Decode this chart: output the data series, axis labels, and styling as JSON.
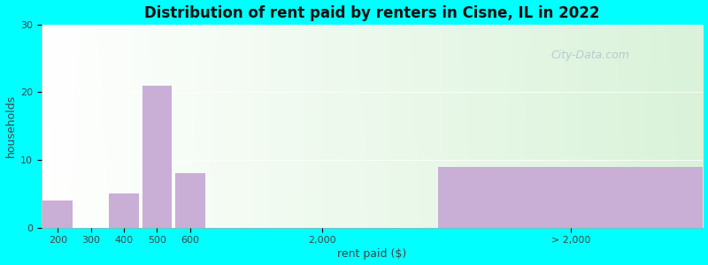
{
  "title": "Distribution of rent paid by renters in Cisne, IL in 2022",
  "xlabel": "rent paid ($)",
  "ylabel": "households",
  "bar_color": "#c9aed6",
  "background_color": "#00ffff",
  "ylim": [
    0,
    30
  ],
  "yticks": [
    0,
    10,
    20,
    30
  ],
  "bar_values": [
    4,
    0,
    5,
    21,
    8,
    0,
    9
  ],
  "xtick_labels": [
    "200",
    "300",
    "400",
    "500",
    "600",
    "2,000",
    "> 2,000"
  ],
  "watermark": "City-Data.com",
  "title_fontsize": 12,
  "axis_label_fontsize": 9,
  "tick_fontsize": 8
}
